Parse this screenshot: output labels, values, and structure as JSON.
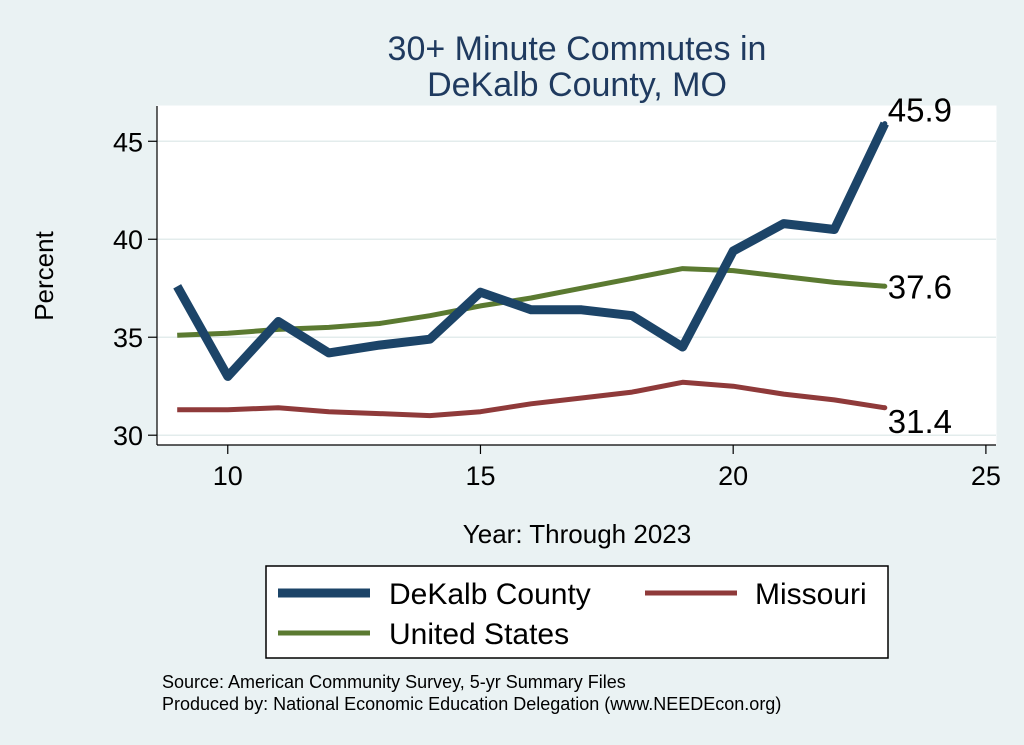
{
  "chart_data": {
    "type": "line",
    "title": [
      "30+ Minute Commutes in",
      "DeKalb County, MO"
    ],
    "xlabel": "Year: Through 2023",
    "ylabel": "Percent",
    "xlim": [
      8.6,
      25.2
    ],
    "ylim": [
      29.5,
      46.8
    ],
    "xticks": [
      10,
      15,
      20,
      25
    ],
    "yticks": [
      30,
      35,
      40,
      45
    ],
    "grid": true,
    "x": [
      9,
      10,
      11,
      12,
      13,
      14,
      15,
      16,
      17,
      18,
      19,
      20,
      21,
      22,
      23
    ],
    "series": [
      {
        "name": "DeKalb County",
        "color": "#1c4468",
        "values": [
          37.6,
          33.0,
          35.8,
          34.2,
          34.6,
          34.9,
          37.3,
          36.4,
          36.4,
          36.1,
          34.5,
          39.4,
          40.8,
          40.5,
          45.9
        ],
        "end_label": "45.9"
      },
      {
        "name": "Missouri",
        "color": "#8f3a3a",
        "values": [
          31.3,
          31.3,
          31.4,
          31.2,
          31.1,
          31.0,
          31.2,
          31.6,
          31.9,
          32.2,
          32.7,
          32.5,
          32.1,
          31.8,
          31.4
        ],
        "end_label": "31.4"
      },
      {
        "name": "United States",
        "color": "#5b7a31",
        "values": [
          35.1,
          35.2,
          35.4,
          35.5,
          35.7,
          36.1,
          36.6,
          37.0,
          37.5,
          38.0,
          38.5,
          38.4,
          38.1,
          37.8,
          37.6
        ],
        "end_label": "37.6"
      }
    ],
    "legend_position": "bottom"
  },
  "source_lines": [
    "Source: American Community Survey, 5-yr Summary Files",
    "Produced by: National Economic Education Delegation (www.NEEDEcon.org)"
  ]
}
